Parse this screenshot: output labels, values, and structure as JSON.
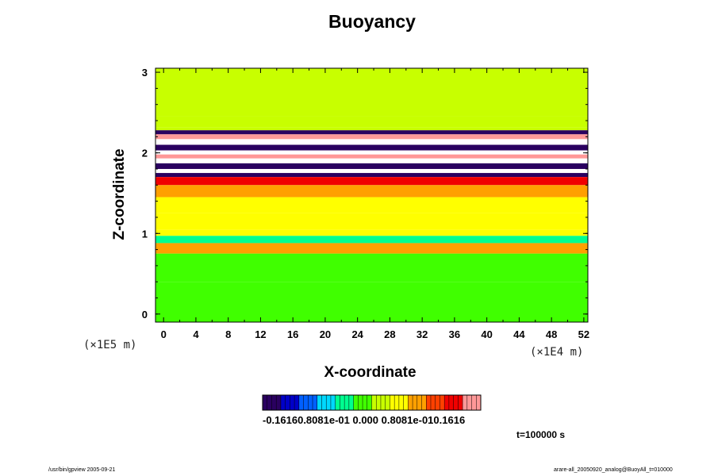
{
  "chart_data": {
    "type": "heatmap",
    "title": "Buoyancy",
    "xlabel": "X-coordinate",
    "ylabel": "Z-coordinate",
    "x_unit": "(×1E4 m)",
    "z_unit": "(×1E5 m)",
    "x_ticks": [
      "0",
      "4",
      "8",
      "12",
      "16",
      "20",
      "24",
      "28",
      "32",
      "36",
      "40",
      "44",
      "48",
      "52"
    ],
    "y_ticks": [
      "0",
      "1",
      "2",
      "3"
    ],
    "xlim": [
      -1,
      52.5
    ],
    "ylim": [
      -0.1,
      3.05
    ],
    "colorbar": {
      "range": [
        -0.1616,
        0.1616
      ],
      "labels": "-0.16160.8081e-01 0.000 0.8081e-010.1616",
      "colors": [
        "#2a0060",
        "#0000c8",
        "#0060ff",
        "#00d8ff",
        "#00ff90",
        "#40ff00",
        "#c8ff00",
        "#ffff00",
        "#ffa000",
        "#ff4000",
        "#f00000",
        "#ff9898"
      ]
    },
    "field_bands": [
      {
        "z": 3.05,
        "value": 0.0
      },
      {
        "z": 2.45,
        "value": 0.01
      },
      {
        "z": 2.32,
        "value": 0.02
      },
      {
        "z": 2.28,
        "value": -0.16
      },
      {
        "z": 2.23,
        "value": 0.16
      },
      {
        "z": 2.17,
        "value": 0.22
      },
      {
        "z": 2.1,
        "value": -0.15
      },
      {
        "z": 2.03,
        "value": 0.22
      },
      {
        "z": 1.98,
        "value": 0.15
      },
      {
        "z": 1.93,
        "value": 0.22
      },
      {
        "z": 1.87,
        "value": -0.14
      },
      {
        "z": 1.8,
        "value": 0.22
      },
      {
        "z": 1.75,
        "value": -0.16
      },
      {
        "z": 1.7,
        "value": 0.13
      },
      {
        "z": 1.6,
        "value": 0.08
      },
      {
        "z": 1.45,
        "value": 0.05
      },
      {
        "z": 1.25,
        "value": 0.03
      },
      {
        "z": 1.05,
        "value": 0.04
      },
      {
        "z": 0.97,
        "value": -0.03
      },
      {
        "z": 0.88,
        "value": 0.06
      },
      {
        "z": 0.75,
        "value": -0.01
      },
      {
        "z": 0.4,
        "value": -0.012
      },
      {
        "z": -0.1,
        "value": -0.01
      }
    ]
  },
  "time_label": "t=100000 s",
  "footer_left": "/usr/bin/gpview 2005-09-21",
  "footer_right": "arare-all_20050920_analog@BuoyAll_t=010000"
}
